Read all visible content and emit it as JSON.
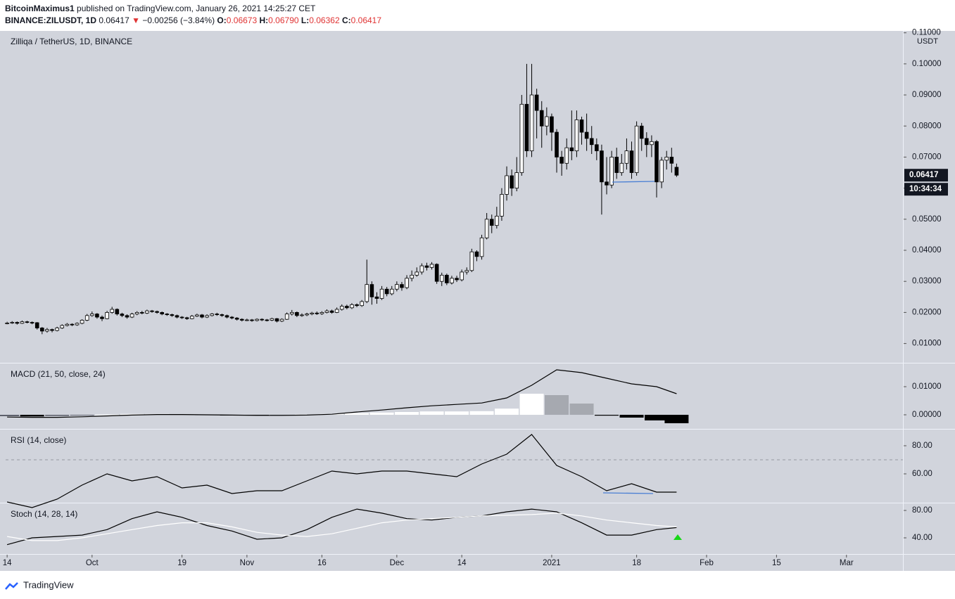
{
  "header": {
    "author": "BitcoinMaximus1",
    "published": "published on TradingView.com, January 26, 2021 14:25:27 CET",
    "symbol": "BINANCE:ZILUSDT, 1D",
    "last": "0.06417",
    "change": "−0.00256 (−3.84%)",
    "open_label": "O:",
    "open": "0.06673",
    "high_label": "H:",
    "high": "0.06790",
    "low_label": "L:",
    "low": "0.06362",
    "close_label": "C:",
    "close": "0.06417"
  },
  "footer": {
    "brand": "TradingView"
  },
  "chart_data": [
    {
      "type": "candlestick",
      "title": "Zilliqa / TetherUS, 1D, BINANCE",
      "y_unit": "USDT",
      "last_price_label": "0.06417",
      "countdown": "10:34:34",
      "up_color": "#ffffff",
      "down_color": "#000000",
      "xlim": [
        -0.3,
        179.3
      ],
      "ylim": [
        0.0038,
        0.1106
      ],
      "yticks": [
        {
          "value": 0.01,
          "label": "0.01000"
        },
        {
          "value": 0.02,
          "label": "0.02000"
        },
        {
          "value": 0.03,
          "label": "0.03000"
        },
        {
          "value": 0.04,
          "label": "0.04000"
        },
        {
          "value": 0.05,
          "label": "0.05000"
        },
        {
          "value": 0.06,
          "label": "0.06000"
        },
        {
          "value": 0.07,
          "label": "0.07000"
        },
        {
          "value": 0.08,
          "label": "0.08000"
        },
        {
          "value": 0.09,
          "label": "0.09000"
        },
        {
          "value": 0.1,
          "label": "0.10000"
        },
        {
          "value": 0.11,
          "label": "0.11000"
        }
      ],
      "xticks": [
        {
          "value": 0,
          "label": "14"
        },
        {
          "value": 17,
          "label": "Oct"
        },
        {
          "value": 35,
          "label": "19"
        },
        {
          "value": 48,
          "label": "Nov"
        },
        {
          "value": 63,
          "label": "16"
        },
        {
          "value": 78,
          "label": "Dec"
        },
        {
          "value": 91,
          "label": "14"
        },
        {
          "value": 109,
          "label": "2021"
        },
        {
          "value": 126,
          "label": "18"
        },
        {
          "value": 140,
          "label": "Feb"
        },
        {
          "value": 154,
          "label": "15"
        },
        {
          "value": 168,
          "label": "Mar"
        }
      ],
      "open": [
        0.0165,
        0.0166,
        0.0168,
        0.0165,
        0.017,
        0.0168,
        0.0167,
        0.015,
        0.014,
        0.0145,
        0.0142,
        0.015,
        0.0158,
        0.0162,
        0.016,
        0.0165,
        0.0175,
        0.019,
        0.0195,
        0.0185,
        0.018,
        0.02,
        0.021,
        0.0195,
        0.019,
        0.0185,
        0.0195,
        0.02,
        0.0198,
        0.0205,
        0.0203,
        0.02,
        0.0195,
        0.0193,
        0.019,
        0.0185,
        0.0183,
        0.018,
        0.0188,
        0.0192,
        0.0185,
        0.019,
        0.0195,
        0.0193,
        0.019,
        0.0185,
        0.0182,
        0.0178,
        0.0175,
        0.0176,
        0.0174,
        0.0178,
        0.0176,
        0.0175,
        0.018,
        0.0172,
        0.0178,
        0.0195,
        0.02,
        0.019,
        0.0192,
        0.0195,
        0.0198,
        0.0196,
        0.02,
        0.0205,
        0.02,
        0.021,
        0.022,
        0.0215,
        0.0225,
        0.0222,
        0.0235,
        0.029,
        0.025,
        0.0245,
        0.0275,
        0.026,
        0.0275,
        0.029,
        0.028,
        0.031,
        0.032,
        0.033,
        0.035,
        0.0345,
        0.0355,
        0.03,
        0.032,
        0.0295,
        0.031,
        0.0305,
        0.033,
        0.0335,
        0.0395,
        0.038,
        0.044,
        0.05,
        0.048,
        0.051,
        0.058,
        0.064,
        0.06,
        0.065,
        0.087,
        0.072,
        0.09,
        0.085,
        0.08,
        0.083,
        0.078,
        0.07,
        0.068,
        0.073,
        0.072,
        0.082,
        0.078,
        0.076,
        0.074,
        0.072,
        0.062,
        0.061,
        0.07,
        0.065,
        0.068,
        0.072,
        0.065,
        0.08,
        0.076,
        0.074,
        0.075,
        0.062,
        0.069,
        0.07,
        0.06673
      ],
      "high": [
        0.017,
        0.0172,
        0.0171,
        0.0174,
        0.0173,
        0.0171,
        0.0169,
        0.0153,
        0.015,
        0.0148,
        0.0154,
        0.0162,
        0.0166,
        0.0165,
        0.0168,
        0.0178,
        0.0195,
        0.0203,
        0.0198,
        0.019,
        0.0205,
        0.0218,
        0.0213,
        0.0199,
        0.0194,
        0.0199,
        0.0204,
        0.0205,
        0.0209,
        0.0208,
        0.0206,
        0.0203,
        0.0198,
        0.0196,
        0.0193,
        0.0188,
        0.0186,
        0.0192,
        0.0196,
        0.0195,
        0.0194,
        0.0198,
        0.0199,
        0.0196,
        0.0193,
        0.0188,
        0.0185,
        0.0181,
        0.018,
        0.0179,
        0.0181,
        0.0181,
        0.0179,
        0.0183,
        0.0182,
        0.0181,
        0.02,
        0.0208,
        0.0203,
        0.0197,
        0.0199,
        0.0202,
        0.0203,
        0.0204,
        0.021,
        0.0209,
        0.0216,
        0.0226,
        0.0225,
        0.023,
        0.0229,
        0.024,
        0.037,
        0.03,
        0.0265,
        0.0285,
        0.0282,
        0.0285,
        0.03,
        0.0298,
        0.032,
        0.0335,
        0.0345,
        0.0358,
        0.036,
        0.0362,
        0.0358,
        0.0328,
        0.0325,
        0.0318,
        0.0318,
        0.0338,
        0.0345,
        0.0405,
        0.04,
        0.045,
        0.052,
        0.0515,
        0.054,
        0.06,
        0.067,
        0.066,
        0.07,
        0.09,
        0.1,
        0.1,
        0.092,
        0.088,
        0.086,
        0.084,
        0.079,
        0.072,
        0.076,
        0.085,
        0.085,
        0.083,
        0.084,
        0.08,
        0.076,
        0.074,
        0.07,
        0.072,
        0.073,
        0.071,
        0.076,
        0.075,
        0.0815,
        0.081,
        0.078,
        0.077,
        0.0755,
        0.07,
        0.072,
        0.073,
        0.0679
      ],
      "low": [
        0.0162,
        0.0163,
        0.0161,
        0.0163,
        0.0165,
        0.0162,
        0.0145,
        0.013,
        0.0135,
        0.0136,
        0.0139,
        0.0147,
        0.0155,
        0.0156,
        0.0157,
        0.0162,
        0.0172,
        0.0186,
        0.018,
        0.0172,
        0.0178,
        0.0196,
        0.019,
        0.0185,
        0.018,
        0.0182,
        0.0191,
        0.0194,
        0.0195,
        0.0199,
        0.0196,
        0.0191,
        0.0189,
        0.0186,
        0.0181,
        0.0179,
        0.0176,
        0.0178,
        0.0185,
        0.0181,
        0.0182,
        0.0187,
        0.0189,
        0.0186,
        0.0181,
        0.0178,
        0.0174,
        0.0171,
        0.0172,
        0.017,
        0.0171,
        0.0172,
        0.0171,
        0.0172,
        0.0168,
        0.0169,
        0.0176,
        0.019,
        0.0185,
        0.0186,
        0.0188,
        0.0191,
        0.0192,
        0.0192,
        0.0197,
        0.0196,
        0.0198,
        0.0206,
        0.021,
        0.0211,
        0.0217,
        0.0218,
        0.023,
        0.0225,
        0.0228,
        0.024,
        0.0252,
        0.0255,
        0.0268,
        0.027,
        0.0275,
        0.03,
        0.0315,
        0.0322,
        0.0335,
        0.0338,
        0.0292,
        0.0285,
        0.0288,
        0.029,
        0.0298,
        0.03,
        0.0322,
        0.033,
        0.0365,
        0.037,
        0.0435,
        0.0455,
        0.047,
        0.0495,
        0.056,
        0.0575,
        0.059,
        0.064,
        0.07,
        0.07,
        0.076,
        0.073,
        0.077,
        0.072,
        0.065,
        0.064,
        0.066,
        0.069,
        0.07,
        0.074,
        0.072,
        0.071,
        0.069,
        0.0515,
        0.058,
        0.06,
        0.063,
        0.064,
        0.066,
        0.063,
        0.064,
        0.072,
        0.07,
        0.07,
        0.057,
        0.06,
        0.066,
        0.065,
        0.06362
      ],
      "close": [
        0.0166,
        0.0168,
        0.0165,
        0.017,
        0.0168,
        0.0167,
        0.015,
        0.014,
        0.0145,
        0.0142,
        0.015,
        0.0158,
        0.0162,
        0.016,
        0.0165,
        0.0175,
        0.019,
        0.0195,
        0.0185,
        0.018,
        0.02,
        0.021,
        0.0195,
        0.019,
        0.0185,
        0.0195,
        0.02,
        0.0198,
        0.0205,
        0.0203,
        0.02,
        0.0195,
        0.0193,
        0.019,
        0.0185,
        0.0183,
        0.018,
        0.0188,
        0.0192,
        0.0185,
        0.019,
        0.0195,
        0.0193,
        0.019,
        0.0185,
        0.0182,
        0.0178,
        0.0175,
        0.0176,
        0.0174,
        0.0178,
        0.0176,
        0.0175,
        0.018,
        0.0172,
        0.0178,
        0.0195,
        0.02,
        0.019,
        0.0192,
        0.0195,
        0.0198,
        0.0196,
        0.02,
        0.0205,
        0.02,
        0.021,
        0.022,
        0.0215,
        0.0225,
        0.0222,
        0.0235,
        0.029,
        0.025,
        0.0245,
        0.0275,
        0.026,
        0.0275,
        0.029,
        0.028,
        0.031,
        0.032,
        0.033,
        0.035,
        0.0345,
        0.0355,
        0.03,
        0.032,
        0.0295,
        0.031,
        0.0305,
        0.033,
        0.0335,
        0.0395,
        0.038,
        0.044,
        0.05,
        0.048,
        0.051,
        0.058,
        0.064,
        0.06,
        0.065,
        0.087,
        0.072,
        0.09,
        0.085,
        0.08,
        0.083,
        0.078,
        0.07,
        0.068,
        0.073,
        0.072,
        0.082,
        0.078,
        0.076,
        0.074,
        0.072,
        0.062,
        0.061,
        0.07,
        0.065,
        0.068,
        0.072,
        0.065,
        0.08,
        0.076,
        0.074,
        0.075,
        0.062,
        0.069,
        0.07,
        0.068,
        0.06417
      ]
    },
    {
      "type": "macd",
      "title": "MACD (21, 50, close, 24)",
      "xlim": [
        -0.3,
        179.3
      ],
      "ylim": [
        -0.005,
        0.01825
      ],
      "yticks": [
        {
          "value": 0,
          "label": "0.00000"
        },
        {
          "value": 0.01,
          "label": "0.01000"
        }
      ],
      "x": [
        0,
        5,
        10,
        15,
        20,
        25,
        30,
        35,
        40,
        45,
        50,
        55,
        60,
        65,
        70,
        75,
        80,
        85,
        90,
        95,
        100,
        105,
        110,
        115,
        120,
        125,
        130,
        134
      ],
      "histogram": [
        -0.0005,
        -0.0006,
        -0.0004,
        -0.0002,
        0.0001,
        0.0003,
        0.0003,
        0.0002,
        0.0001,
        -0.0001,
        -0.0002,
        -0.0001,
        0.0001,
        0.0003,
        0.0006,
        0.0008,
        0.001,
        0.0012,
        0.0012,
        0.0013,
        0.0022,
        0.0075,
        0.007,
        0.004,
        -0.0003,
        -0.001,
        -0.002,
        -0.003
      ],
      "histogram_colors": [
        "#ffffff",
        "#a6a9b0",
        "#5d606b",
        "#000000"
      ],
      "series": [
        {
          "color": "#000000",
          "values": [
            -0.0008,
            -0.0009,
            -0.0009,
            -0.0007,
            -0.0004,
            -0.0001,
            0.0001,
            0.0001,
            0,
            -0.0001,
            -0.0002,
            -0.0002,
            -0.0001,
            0.0002,
            0.001,
            0.0017,
            0.0025,
            0.0032,
            0.0037,
            0.0042,
            0.006,
            0.0105,
            0.016,
            0.015,
            0.013,
            0.011,
            0.01,
            0.0075
          ]
        }
      ]
    },
    {
      "type": "line",
      "title": "RSI (14, close)",
      "xlim": [
        -0.3,
        179.3
      ],
      "ylim": [
        39.5,
        91.5
      ],
      "dashed_level": 70,
      "yticks": [
        {
          "value": 60,
          "label": "60.00"
        },
        {
          "value": 80,
          "label": "80.00"
        }
      ],
      "x": [
        0,
        5,
        10,
        15,
        20,
        25,
        30,
        35,
        40,
        45,
        50,
        55,
        60,
        65,
        70,
        75,
        80,
        85,
        90,
        95,
        100,
        105,
        110,
        115,
        120,
        125,
        130,
        134
      ],
      "series": [
        {
          "color": "#000000",
          "values": [
            40,
            36,
            42,
            52,
            60,
            55,
            58,
            50,
            52,
            46,
            48,
            48,
            55,
            62,
            60,
            62,
            62,
            60,
            58,
            67,
            74,
            88,
            66,
            58,
            48,
            53,
            47,
            47
          ]
        }
      ]
    },
    {
      "type": "line",
      "title": "Stoch (14, 28, 14)",
      "xlim": [
        -0.3,
        179.3
      ],
      "ylim": [
        16.4,
        90.3
      ],
      "yticks": [
        {
          "value": 40,
          "label": "40.00"
        },
        {
          "value": 80,
          "label": "80.00"
        }
      ],
      "x": [
        0,
        5,
        10,
        15,
        20,
        25,
        30,
        35,
        40,
        45,
        50,
        55,
        60,
        65,
        70,
        75,
        80,
        85,
        90,
        95,
        100,
        105,
        110,
        115,
        120,
        125,
        130,
        134
      ],
      "series": [
        {
          "color": "#000000",
          "values": [
            30,
            40,
            42,
            44,
            52,
            68,
            78,
            70,
            58,
            50,
            38,
            40,
            52,
            70,
            82,
            76,
            68,
            66,
            70,
            72,
            78,
            82,
            78,
            62,
            44,
            44,
            52,
            55
          ]
        },
        {
          "color": "#ffffff",
          "values": [
            42,
            36,
            36,
            40,
            46,
            52,
            58,
            62,
            62,
            56,
            48,
            44,
            42,
            46,
            54,
            62,
            66,
            68,
            70,
            72,
            73,
            74,
            76,
            72,
            66,
            62,
            58,
            56
          ]
        }
      ]
    }
  ]
}
